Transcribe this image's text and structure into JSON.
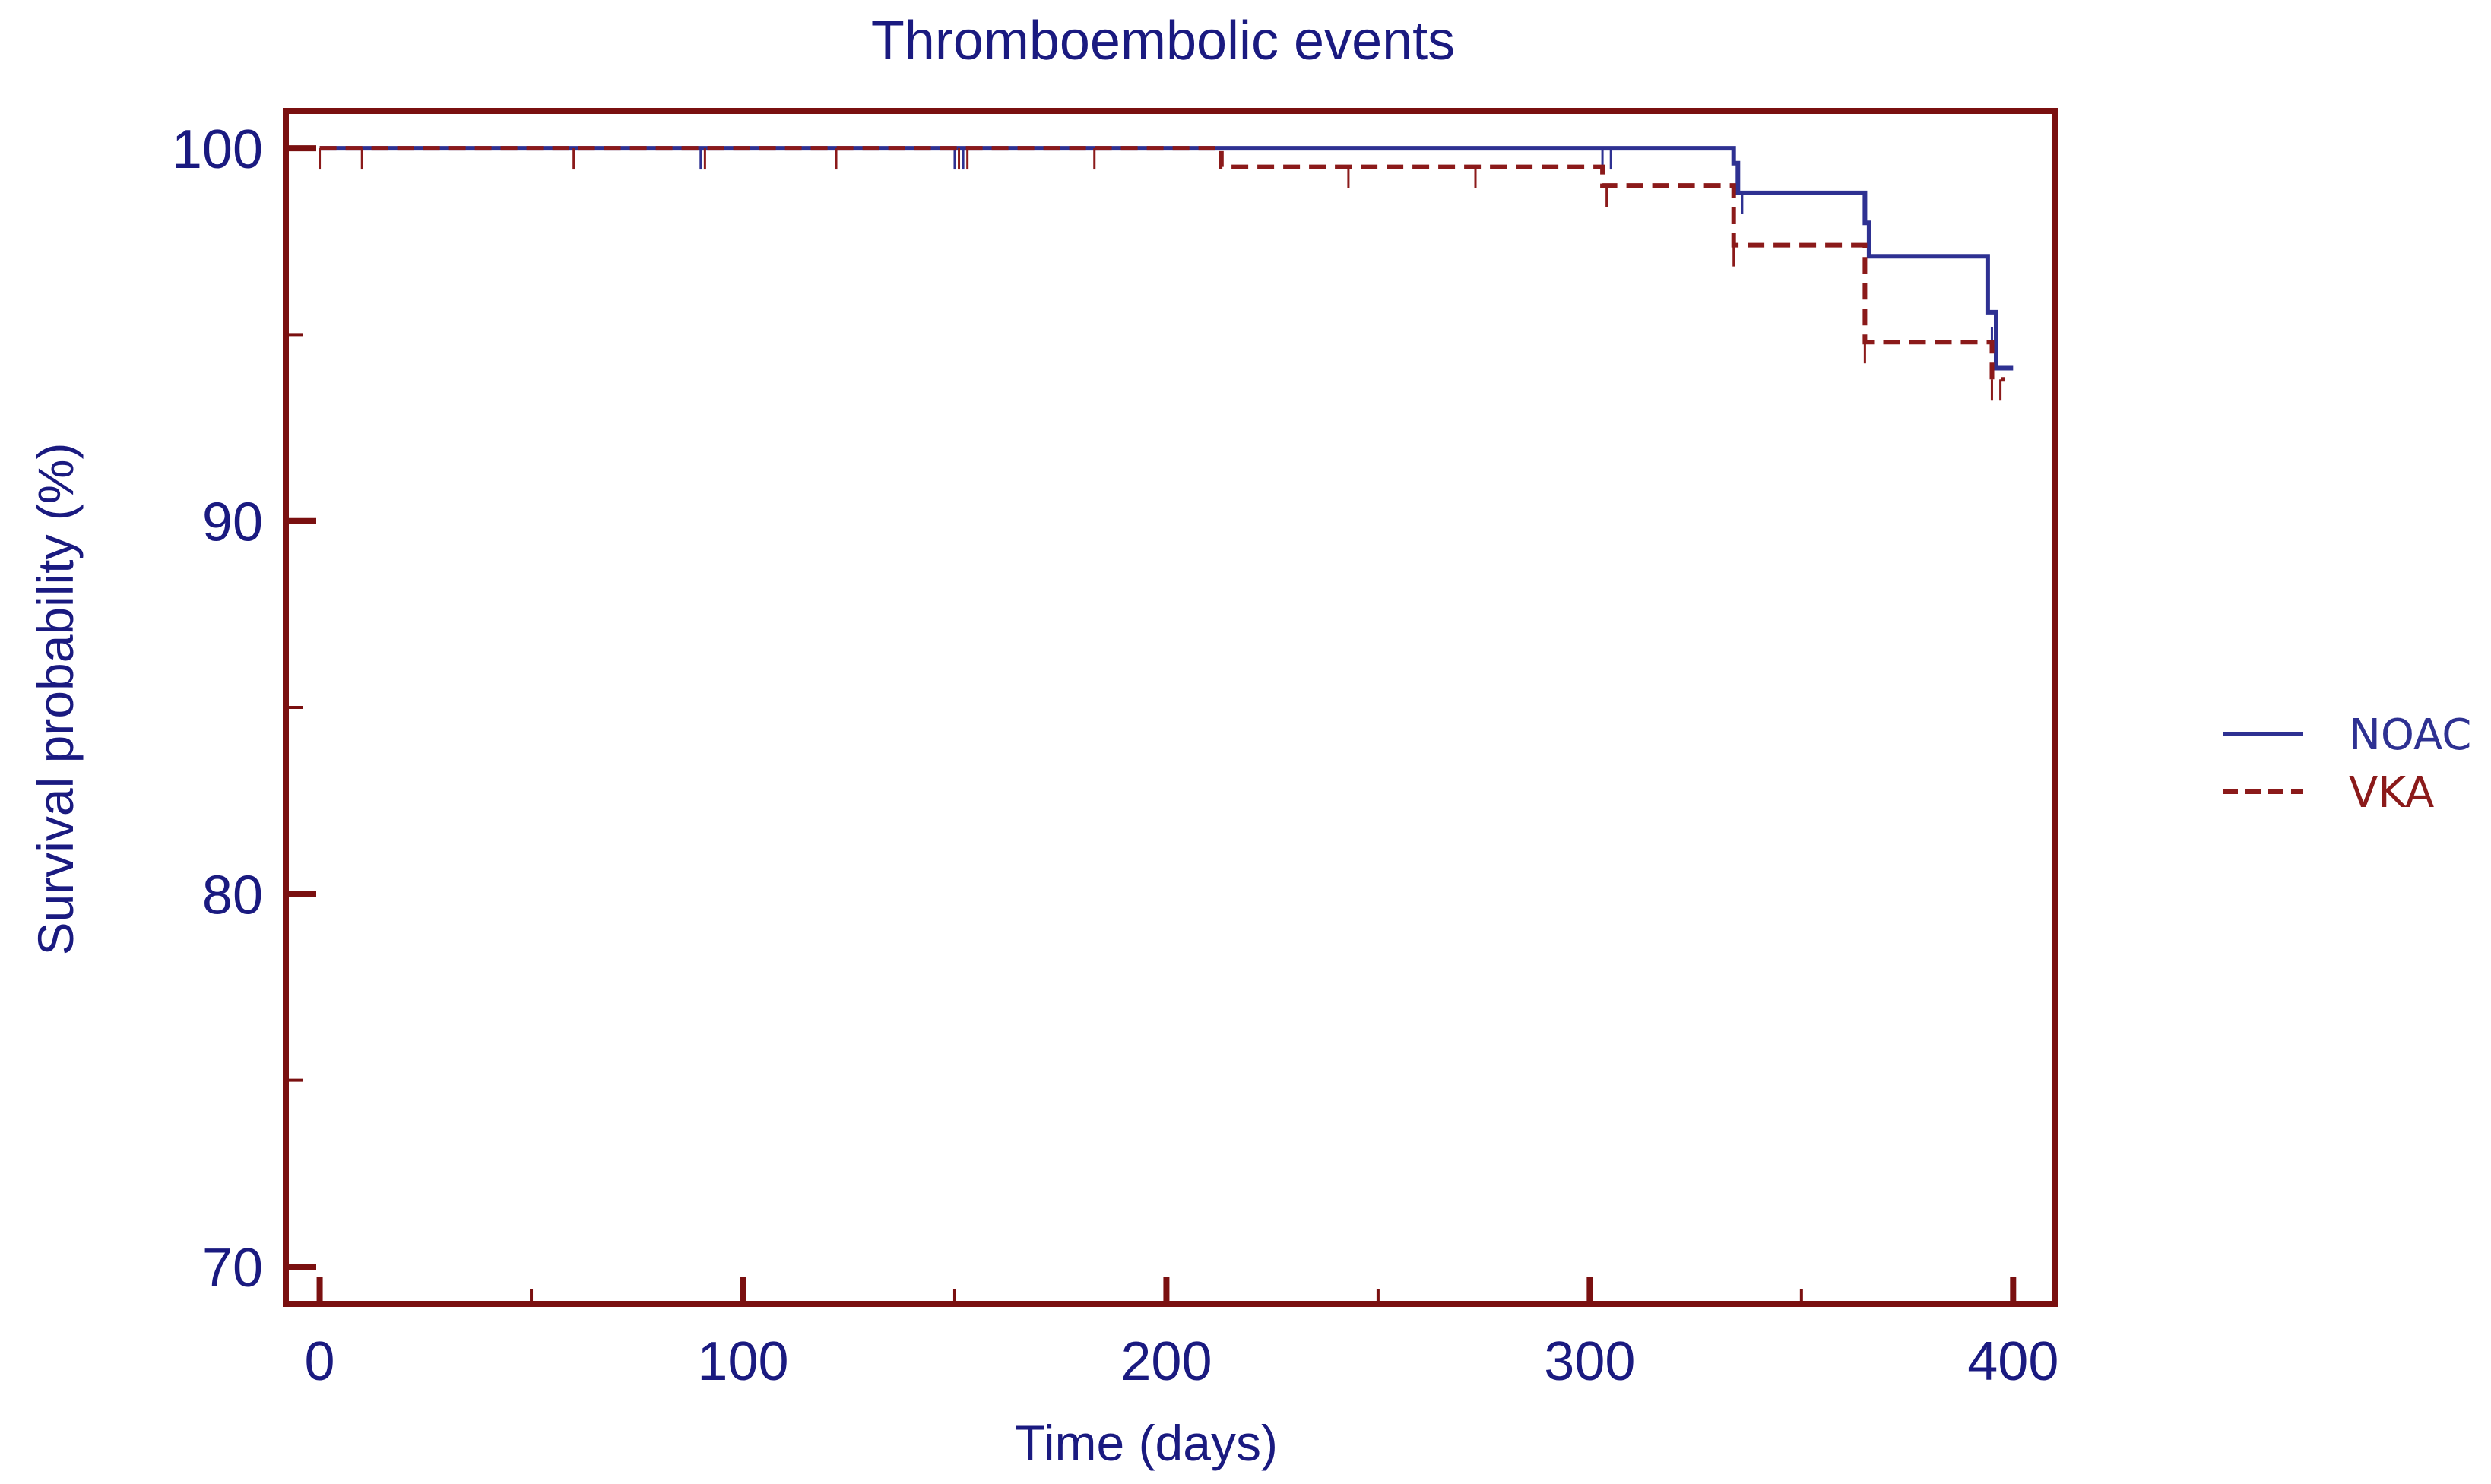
{
  "chart_data": {
    "type": "line",
    "subtype": "kaplan-meier step",
    "title": "Thromboembolic events",
    "xlabel": "Time (days)",
    "ylabel": "Survival probability (%)",
    "xlim": [
      -8,
      410
    ],
    "ylim": [
      69,
      101
    ],
    "x_major_ticks": [
      0,
      100,
      200,
      300,
      400
    ],
    "x_minor_ticks": [
      50,
      150,
      250,
      350
    ],
    "x_tick_labels": [
      "0",
      "100",
      "200",
      "300",
      "400"
    ],
    "y_major_ticks": [
      70,
      80,
      90,
      100
    ],
    "y_minor_ticks": [
      75,
      85,
      95
    ],
    "y_tick_labels": [
      "70",
      "80",
      "90",
      "100"
    ],
    "grid": false,
    "legend_position": "right",
    "series": [
      {
        "name": "NOAC",
        "color": "#2e3192",
        "dash": "solid",
        "steps": [
          [
            0,
            100
          ],
          [
            333,
            100
          ],
          [
            334,
            99.6
          ],
          [
            335,
            98.8
          ],
          [
            364,
            98.8
          ],
          [
            365,
            98.0
          ],
          [
            366,
            97.1
          ],
          [
            393,
            97.1
          ],
          [
            394,
            95.6
          ],
          [
            396,
            94.1
          ],
          [
            400,
            94.1
          ]
        ],
        "censored": [
          [
            90,
            100
          ],
          [
            150,
            100
          ],
          [
            152,
            100
          ],
          [
            303,
            100
          ],
          [
            305,
            100
          ],
          [
            336,
            98.8
          ],
          [
            395,
            95.2
          ]
        ]
      },
      {
        "name": "VKA",
        "color": "#8b1a1a",
        "dash": "dashed",
        "steps": [
          [
            0,
            100
          ],
          [
            212,
            100
          ],
          [
            213,
            99.5
          ],
          [
            302,
            99.5
          ],
          [
            303,
            99.0
          ],
          [
            333,
            99.0
          ],
          [
            334,
            97.4
          ],
          [
            364,
            97.4
          ],
          [
            365,
            94.8
          ],
          [
            394,
            94.8
          ],
          [
            395,
            93.8
          ],
          [
            398,
            93.8
          ]
        ],
        "censored": [
          [
            0,
            100
          ],
          [
            10,
            100
          ],
          [
            60,
            100
          ],
          [
            91,
            100
          ],
          [
            122,
            100
          ],
          [
            151,
            100
          ],
          [
            153,
            100
          ],
          [
            183,
            100
          ],
          [
            243,
            99.5
          ],
          [
            273,
            99.5
          ],
          [
            304,
            99.0
          ],
          [
            334,
            97.4
          ],
          [
            365,
            94.8
          ],
          [
            395,
            93.8
          ],
          [
            397,
            93.8
          ]
        ]
      }
    ]
  },
  "colors": {
    "frame": "#7a1010",
    "text": "#1a1a80",
    "noac": "#2e3192",
    "vka": "#8b1a1a"
  }
}
